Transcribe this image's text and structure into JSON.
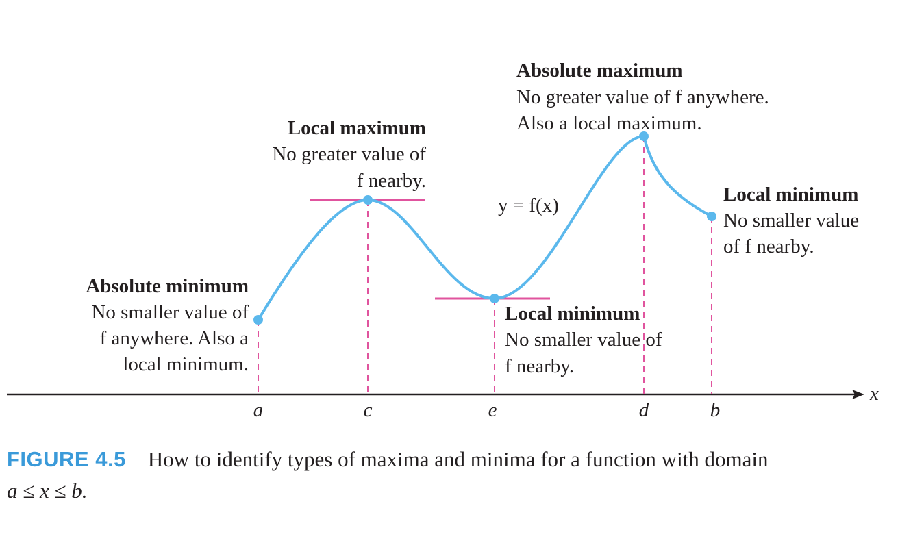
{
  "figure": {
    "curve_label": "y = f(x)",
    "x_axis_label": "x",
    "points": [
      {
        "id": "a",
        "label": "a"
      },
      {
        "id": "c",
        "label": "c"
      },
      {
        "id": "e",
        "label": "e"
      },
      {
        "id": "d",
        "label": "d"
      },
      {
        "id": "b",
        "label": "b"
      }
    ],
    "annotations": {
      "abs_min": {
        "title": "Absolute minimum",
        "lines": [
          "No smaller value of",
          "f anywhere. Also a",
          "local minimum."
        ]
      },
      "local_max": {
        "title": "Local maximum",
        "lines": [
          "No greater value of",
          "f nearby."
        ]
      },
      "abs_max": {
        "title": "Absolute maximum",
        "lines": [
          "No greater value of f anywhere.",
          "Also a local maximum."
        ]
      },
      "local_min_b": {
        "title": "Local minimum",
        "lines": [
          "No smaller value",
          "of f nearby."
        ]
      },
      "local_min_e": {
        "title": "Local minimum",
        "lines": [
          "No smaller value of",
          "f nearby."
        ]
      }
    },
    "colors": {
      "curve": "#5bb8ec",
      "tangent": "#e0549e",
      "dash": "#e0549e",
      "axis": "#231f20"
    }
  },
  "caption": {
    "figure_number": "FIGURE 4.5",
    "text": "How to identify types of maxima and minima for a function with domain",
    "domain": "a ≤ x ≤ b."
  }
}
